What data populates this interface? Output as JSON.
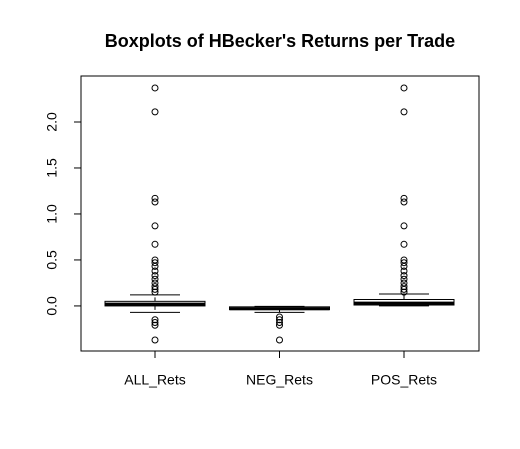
{
  "chart_data": {
    "type": "box",
    "title": "Boxplots of HBecker's Returns per Trade",
    "categories": [
      "ALL_Rets",
      "NEG_Rets",
      "POS_Rets"
    ],
    "boxes": [
      {
        "whislo": -0.07,
        "q1": 0.0,
        "med": 0.02,
        "q3": 0.05,
        "whishi": 0.12,
        "outliers": [
          2.37,
          2.11,
          1.17,
          1.13,
          0.87,
          0.67,
          0.5,
          0.47,
          0.43,
          0.38,
          0.33,
          0.29,
          0.25,
          0.21,
          0.18,
          0.15,
          -0.15,
          -0.18,
          -0.21,
          -0.37
        ]
      },
      {
        "whislo": -0.07,
        "q1": -0.04,
        "med": -0.03,
        "q3": -0.01,
        "whishi": -0.005,
        "outliers": [
          -0.12,
          -0.15,
          -0.18,
          -0.21,
          -0.37
        ]
      },
      {
        "whislo": 0.0,
        "q1": 0.01,
        "med": 0.03,
        "q3": 0.07,
        "whishi": 0.13,
        "outliers": [
          2.37,
          2.11,
          1.17,
          1.13,
          0.87,
          0.67,
          0.5,
          0.47,
          0.43,
          0.38,
          0.33,
          0.29,
          0.25,
          0.21,
          0.18,
          0.15
        ]
      }
    ],
    "ylim": [
      -0.49,
      2.5
    ],
    "yticks": [
      {
        "value": 0,
        "label": "0.0"
      },
      0.5,
      {
        "value": 1,
        "label": "1.0"
      },
      1.5,
      {
        "value": 2,
        "label": "2.0"
      }
    ]
  }
}
